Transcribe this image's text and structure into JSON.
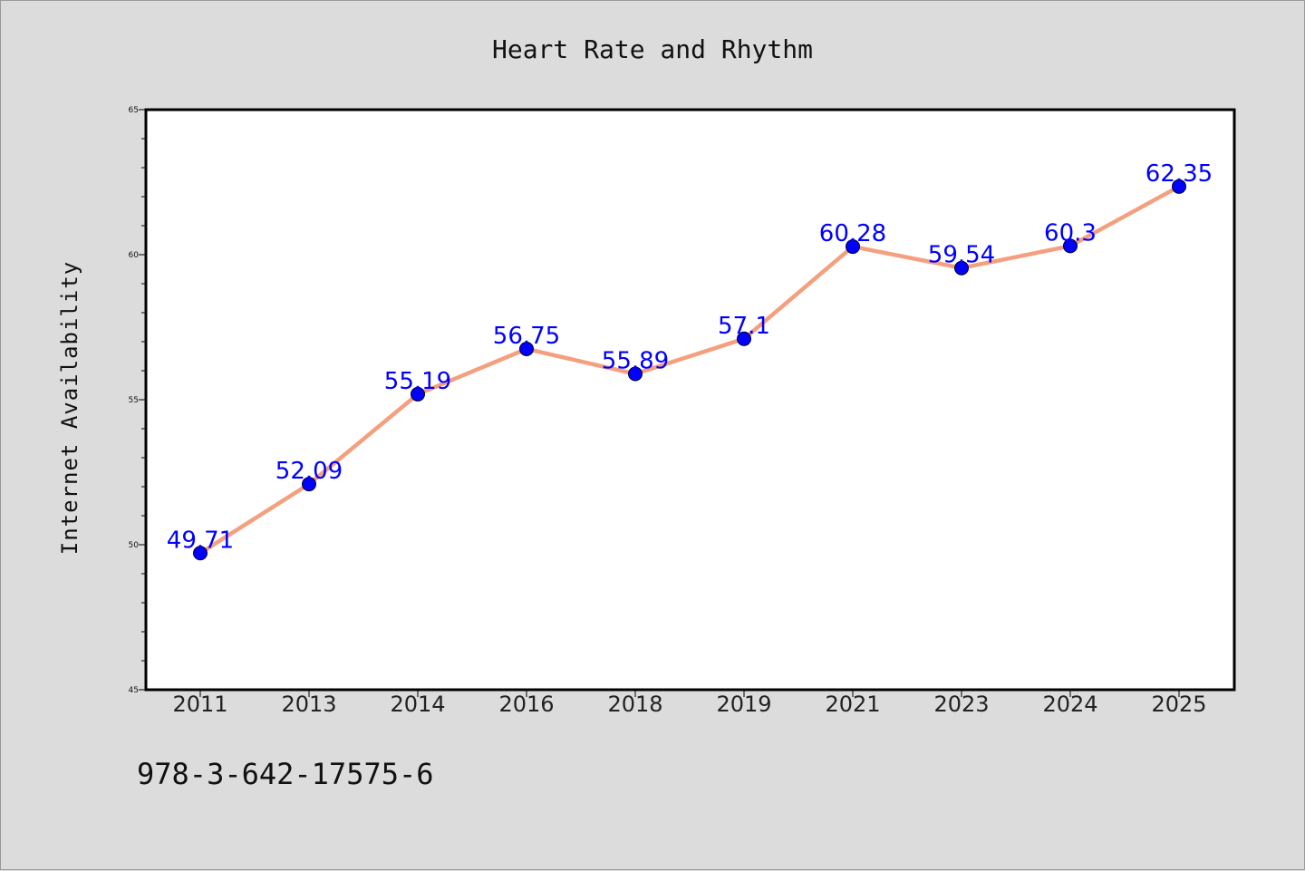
{
  "colors": {
    "background": "#dcdcdc",
    "plot_background": "#ffffff",
    "line": "#f4a07e",
    "marker": "#0000ff",
    "data_label": "#0000ff"
  },
  "footer": {
    "isbn": "978-3-642-17575-6"
  },
  "chart_data": {
    "type": "line",
    "title": "Heart Rate and Rhythm",
    "xlabel": "",
    "ylabel": "Internet Availability",
    "categories": [
      "2011",
      "2013",
      "2014",
      "2016",
      "2018",
      "2019",
      "2021",
      "2023",
      "2024",
      "2025"
    ],
    "series": [
      {
        "values": [
          49.71,
          52.09,
          55.19,
          56.75,
          55.89,
          57.1,
          60.28,
          59.54,
          60.3,
          62.35
        ]
      }
    ],
    "data_labels": [
      "49.71",
      "52.09",
      "55.19",
      "56.75",
      "55.89",
      "57.1",
      "60.28",
      "59.54",
      "60.3",
      "62.35"
    ],
    "ylim": [
      45,
      65
    ],
    "yticks": [
      45,
      50,
      55,
      60,
      65
    ],
    "grid": false,
    "legend": "none"
  }
}
